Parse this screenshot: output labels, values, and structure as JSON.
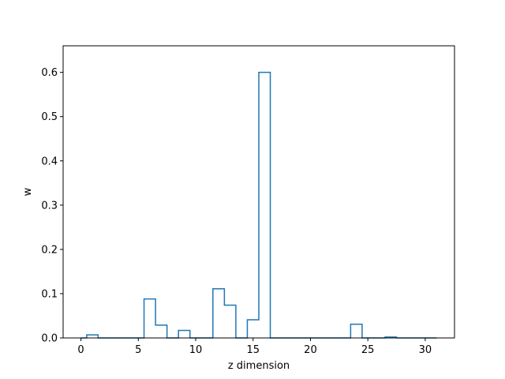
{
  "chart_data": {
    "type": "step",
    "title": "",
    "xlabel": "z dimension",
    "ylabel": "w",
    "xlim": [
      -1.55,
      32.55
    ],
    "ylim": [
      0,
      0.66
    ],
    "xticks": [
      0,
      5,
      10,
      15,
      20,
      25,
      30
    ],
    "yticks": [
      0.0,
      0.1,
      0.2,
      0.3,
      0.4,
      0.5,
      0.6
    ],
    "ytick_labels": [
      "0.0",
      "0.1",
      "0.2",
      "0.3",
      "0.4",
      "0.5",
      "0.6"
    ],
    "grid": false,
    "line_color": "#1f77b4",
    "x": [
      0,
      1,
      2,
      3,
      4,
      5,
      6,
      7,
      8,
      9,
      10,
      11,
      12,
      13,
      14,
      15,
      16,
      17,
      18,
      19,
      20,
      21,
      22,
      23,
      24,
      25,
      26,
      27,
      28,
      29,
      30,
      31
    ],
    "values": [
      0.0,
      0.007,
      0.0,
      0.0,
      0.0,
      0.0,
      0.088,
      0.029,
      0.0,
      0.017,
      0.0,
      0.0,
      0.111,
      0.074,
      0.0,
      0.041,
      0.6,
      0.0,
      0.0,
      0.0,
      0.0,
      0.0,
      0.0,
      0.0,
      0.031,
      0.0,
      0.0,
      0.002,
      0.0,
      0.0,
      0.0,
      0.0
    ]
  }
}
